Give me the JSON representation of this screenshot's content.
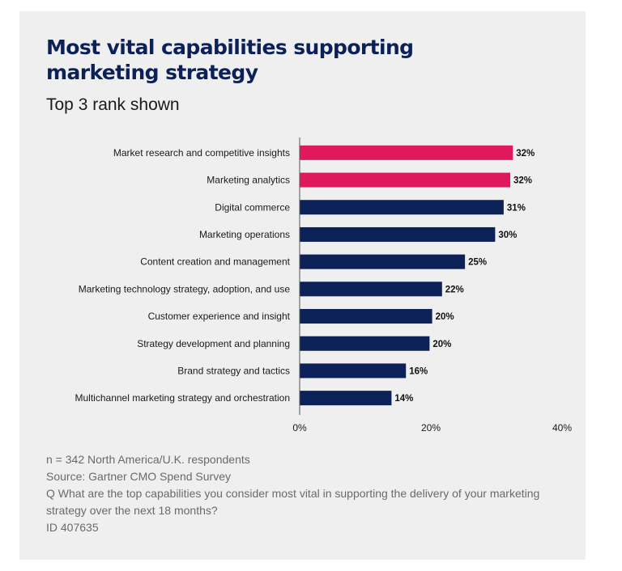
{
  "header": {
    "title": "Most vital capabilities supporting marketing strategy",
    "subtitle": "Top 3 rank shown"
  },
  "chart_data": {
    "type": "bar",
    "orientation": "horizontal",
    "categories": [
      "Market research and competitive insights",
      "Marketing analytics",
      "Digital commerce",
      "Marketing operations",
      "Content creation and management",
      "Marketing technology strategy, adoption, and use",
      "Customer experience and insight",
      "Strategy development and planning",
      "Brand strategy and tactics",
      "Multichannel marketing strategy and orchestration"
    ],
    "values": [
      32.5,
      32.1,
      31.1,
      29.8,
      25.2,
      21.7,
      20.2,
      19.8,
      16.2,
      14.0
    ],
    "data_labels": [
      "32%",
      "32%",
      "31%",
      "30%",
      "25%",
      "22%",
      "20%",
      "20%",
      "16%",
      "14%"
    ],
    "highlighted": [
      true,
      true,
      false,
      false,
      false,
      false,
      false,
      false,
      false,
      false
    ],
    "xlim": [
      0,
      40
    ],
    "xticks": [
      0,
      20,
      40
    ],
    "xtick_labels": [
      "0%",
      "20%",
      "40%"
    ],
    "colors": {
      "highlight": "#e0195b",
      "default": "#0b2157",
      "axis": "#555555"
    },
    "grid": false
  },
  "notes": {
    "respondents": "n = 342 North America/U.K. respondents",
    "source": "Source: Gartner CMO Spend Survey",
    "question": "Q What are the top capabilities you consider most vital in supporting the delivery of your marketing strategy over the next 18 months?",
    "id": "ID 407635"
  }
}
